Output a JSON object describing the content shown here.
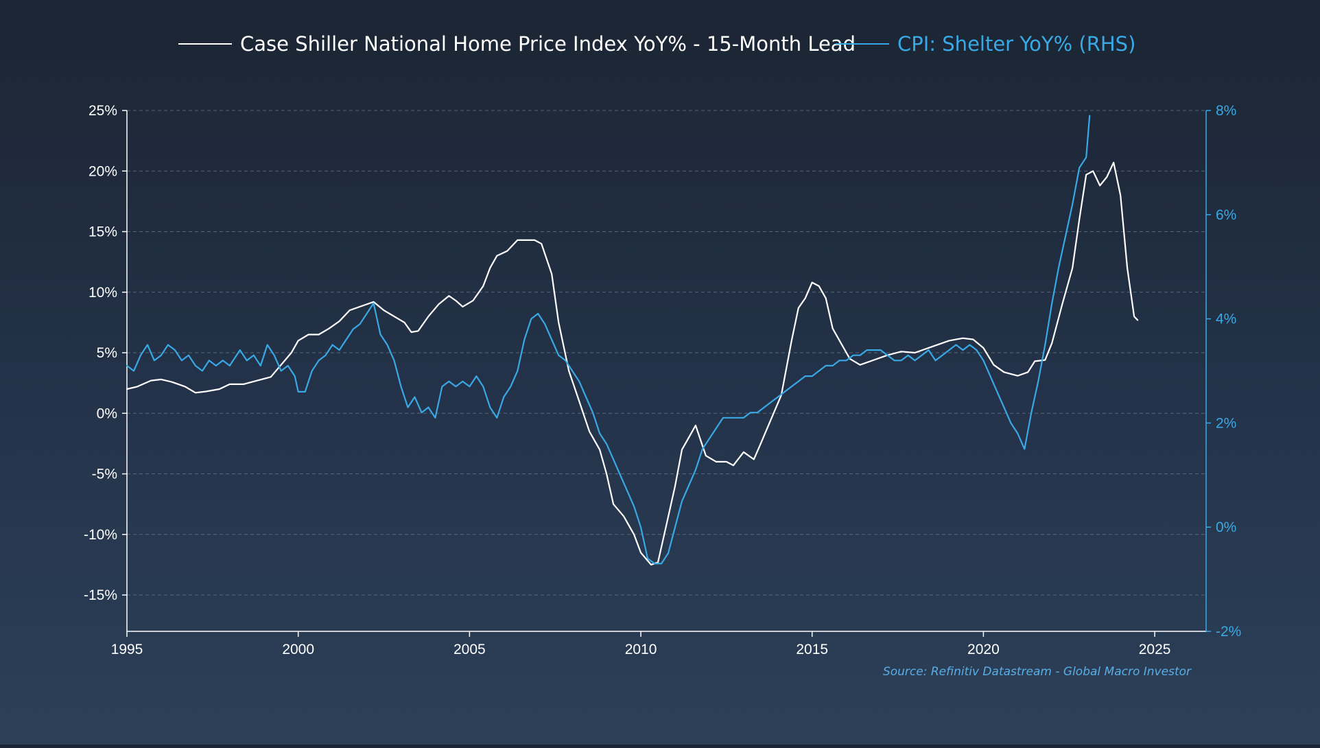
{
  "chart_data": {
    "type": "line",
    "colors": {
      "series_0": "#ffffff",
      "series_1": "#39a9e6",
      "grid": "#6b7a8c"
    },
    "legend_position": "top-center",
    "grid": true,
    "source": "Source: Refinitiv Datastream - Global Macro Investor",
    "x_axis": {
      "min": 1995,
      "max": 2026.5,
      "ticks": [
        1995,
        2000,
        2005,
        2010,
        2015,
        2020,
        2025
      ],
      "tick_labels": [
        "1995",
        "2000",
        "2005",
        "2010",
        "2015",
        "2020",
        "2025"
      ]
    },
    "y_left": {
      "min": -18,
      "max": 25,
      "ticks": [
        -15,
        -10,
        -5,
        0,
        5,
        10,
        15,
        20,
        25
      ],
      "tick_labels": [
        "-15%",
        "-10%",
        "-5%",
        "0%",
        "5%",
        "10%",
        "15%",
        "20%",
        "25%"
      ]
    },
    "y_right": {
      "min": -2,
      "max": 8,
      "ticks": [
        -2,
        0,
        2,
        4,
        6,
        8
      ],
      "tick_labels": [
        "-2%",
        "0%",
        "2%",
        "4%",
        "6%",
        "8%"
      ]
    },
    "series": [
      {
        "name": "Case Shiller National Home Price Index YoY% - 15-Month Lead",
        "axis": "left",
        "points": [
          [
            1995.0,
            2.0
          ],
          [
            1995.3,
            2.2
          ],
          [
            1995.7,
            2.7
          ],
          [
            1996.0,
            2.8
          ],
          [
            1996.3,
            2.6
          ],
          [
            1996.7,
            2.2
          ],
          [
            1997.0,
            1.7
          ],
          [
            1997.3,
            1.8
          ],
          [
            1997.7,
            2.0
          ],
          [
            1998.0,
            2.4
          ],
          [
            1998.4,
            2.4
          ],
          [
            1998.8,
            2.7
          ],
          [
            1999.2,
            3.0
          ],
          [
            1999.5,
            4.0
          ],
          [
            1999.8,
            5.0
          ],
          [
            2000.0,
            6.0
          ],
          [
            2000.3,
            6.5
          ],
          [
            2000.6,
            6.5
          ],
          [
            2000.9,
            7.0
          ],
          [
            2001.2,
            7.6
          ],
          [
            2001.5,
            8.5
          ],
          [
            2001.8,
            8.8
          ],
          [
            2002.2,
            9.2
          ],
          [
            2002.5,
            8.5
          ],
          [
            2002.8,
            8.0
          ],
          [
            2003.1,
            7.5
          ],
          [
            2003.3,
            6.7
          ],
          [
            2003.5,
            6.8
          ],
          [
            2003.8,
            8.0
          ],
          [
            2004.1,
            9.0
          ],
          [
            2004.4,
            9.7
          ],
          [
            2004.6,
            9.3
          ],
          [
            2004.8,
            8.8
          ],
          [
            2005.1,
            9.3
          ],
          [
            2005.4,
            10.5
          ],
          [
            2005.6,
            12.0
          ],
          [
            2005.8,
            13.0
          ],
          [
            2006.1,
            13.4
          ],
          [
            2006.4,
            14.3
          ],
          [
            2006.7,
            14.3
          ],
          [
            2006.9,
            14.3
          ],
          [
            2007.1,
            14.0
          ],
          [
            2007.4,
            11.5
          ],
          [
            2007.6,
            7.5
          ],
          [
            2007.9,
            3.5
          ],
          [
            2008.2,
            1.0
          ],
          [
            2008.5,
            -1.5
          ],
          [
            2008.8,
            -3.0
          ],
          [
            2009.0,
            -5.0
          ],
          [
            2009.2,
            -7.5
          ],
          [
            2009.5,
            -8.5
          ],
          [
            2009.8,
            -10.0
          ],
          [
            2010.0,
            -11.5
          ],
          [
            2010.3,
            -12.5
          ],
          [
            2010.5,
            -12.3
          ],
          [
            2010.7,
            -9.8
          ],
          [
            2011.0,
            -6.0
          ],
          [
            2011.2,
            -3.0
          ],
          [
            2011.4,
            -2.0
          ],
          [
            2011.6,
            -1.0
          ],
          [
            2011.9,
            -3.5
          ],
          [
            2012.2,
            -4.0
          ],
          [
            2012.5,
            -4.0
          ],
          [
            2012.7,
            -4.3
          ],
          [
            2013.0,
            -3.2
          ],
          [
            2013.3,
            -3.8
          ],
          [
            2013.5,
            -2.5
          ],
          [
            2013.8,
            -0.5
          ],
          [
            2014.1,
            1.5
          ],
          [
            2014.4,
            6.0
          ],
          [
            2014.6,
            8.7
          ],
          [
            2014.8,
            9.5
          ],
          [
            2015.0,
            10.8
          ],
          [
            2015.2,
            10.5
          ],
          [
            2015.4,
            9.5
          ],
          [
            2015.6,
            7.0
          ],
          [
            2015.8,
            6.0
          ],
          [
            2016.1,
            4.5
          ],
          [
            2016.4,
            4.0
          ],
          [
            2016.8,
            4.4
          ],
          [
            2017.2,
            4.8
          ],
          [
            2017.6,
            5.1
          ],
          [
            2018.0,
            5.0
          ],
          [
            2018.5,
            5.5
          ],
          [
            2019.0,
            6.0
          ],
          [
            2019.4,
            6.2
          ],
          [
            2019.7,
            6.1
          ],
          [
            2020.0,
            5.4
          ],
          [
            2020.3,
            4.0
          ],
          [
            2020.6,
            3.4
          ],
          [
            2021.0,
            3.1
          ],
          [
            2021.3,
            3.4
          ],
          [
            2021.5,
            4.3
          ],
          [
            2021.8,
            4.4
          ],
          [
            2022.0,
            5.8
          ],
          [
            2022.3,
            9.0
          ],
          [
            2022.6,
            12.0
          ],
          [
            2022.8,
            16.0
          ],
          [
            2023.0,
            19.7
          ],
          [
            2023.2,
            20.0
          ],
          [
            2023.4,
            18.8
          ],
          [
            2023.6,
            19.5
          ],
          [
            2023.8,
            20.7
          ],
          [
            2024.0,
            18.0
          ],
          [
            2024.2,
            12.0
          ],
          [
            2024.4,
            8.0
          ],
          [
            2024.5,
            7.7
          ]
        ]
      },
      {
        "name": "CPI: Shelter YoY% (RHS)",
        "axis": "right",
        "points": [
          [
            1995.0,
            3.1
          ],
          [
            1995.2,
            3.0
          ],
          [
            1995.4,
            3.3
          ],
          [
            1995.6,
            3.5
          ],
          [
            1995.8,
            3.2
          ],
          [
            1996.0,
            3.3
          ],
          [
            1996.2,
            3.5
          ],
          [
            1996.4,
            3.4
          ],
          [
            1996.6,
            3.2
          ],
          [
            1996.8,
            3.3
          ],
          [
            1997.0,
            3.1
          ],
          [
            1997.2,
            3.0
          ],
          [
            1997.4,
            3.2
          ],
          [
            1997.6,
            3.1
          ],
          [
            1997.8,
            3.2
          ],
          [
            1998.0,
            3.1
          ],
          [
            1998.3,
            3.4
          ],
          [
            1998.5,
            3.2
          ],
          [
            1998.7,
            3.3
          ],
          [
            1998.9,
            3.1
          ],
          [
            1999.1,
            3.5
          ],
          [
            1999.3,
            3.3
          ],
          [
            1999.5,
            3.0
          ],
          [
            1999.7,
            3.1
          ],
          [
            1999.9,
            2.9
          ],
          [
            2000.0,
            2.6
          ],
          [
            2000.2,
            2.6
          ],
          [
            2000.4,
            3.0
          ],
          [
            2000.6,
            3.2
          ],
          [
            2000.8,
            3.3
          ],
          [
            2001.0,
            3.5
          ],
          [
            2001.2,
            3.4
          ],
          [
            2001.4,
            3.6
          ],
          [
            2001.6,
            3.8
          ],
          [
            2001.8,
            3.9
          ],
          [
            2002.0,
            4.1
          ],
          [
            2002.2,
            4.3
          ],
          [
            2002.4,
            3.7
          ],
          [
            2002.6,
            3.5
          ],
          [
            2002.8,
            3.2
          ],
          [
            2003.0,
            2.7
          ],
          [
            2003.2,
            2.3
          ],
          [
            2003.4,
            2.5
          ],
          [
            2003.6,
            2.2
          ],
          [
            2003.8,
            2.3
          ],
          [
            2004.0,
            2.1
          ],
          [
            2004.2,
            2.7
          ],
          [
            2004.4,
            2.8
          ],
          [
            2004.6,
            2.7
          ],
          [
            2004.8,
            2.8
          ],
          [
            2005.0,
            2.7
          ],
          [
            2005.2,
            2.9
          ],
          [
            2005.4,
            2.7
          ],
          [
            2005.6,
            2.3
          ],
          [
            2005.8,
            2.1
          ],
          [
            2006.0,
            2.5
          ],
          [
            2006.2,
            2.7
          ],
          [
            2006.4,
            3.0
          ],
          [
            2006.6,
            3.6
          ],
          [
            2006.8,
            4.0
          ],
          [
            2007.0,
            4.1
          ],
          [
            2007.2,
            3.9
          ],
          [
            2007.4,
            3.6
          ],
          [
            2007.6,
            3.3
          ],
          [
            2007.8,
            3.2
          ],
          [
            2008.0,
            3.0
          ],
          [
            2008.2,
            2.8
          ],
          [
            2008.4,
            2.5
          ],
          [
            2008.6,
            2.2
          ],
          [
            2008.8,
            1.8
          ],
          [
            2009.0,
            1.6
          ],
          [
            2009.2,
            1.3
          ],
          [
            2009.4,
            1.0
          ],
          [
            2009.6,
            0.7
          ],
          [
            2009.8,
            0.4
          ],
          [
            2010.0,
            0.0
          ],
          [
            2010.2,
            -0.6
          ],
          [
            2010.4,
            -0.7
          ],
          [
            2010.6,
            -0.7
          ],
          [
            2010.8,
            -0.5
          ],
          [
            2011.0,
            0.0
          ],
          [
            2011.2,
            0.5
          ],
          [
            2011.4,
            0.8
          ],
          [
            2011.6,
            1.1
          ],
          [
            2011.8,
            1.5
          ],
          [
            2012.0,
            1.7
          ],
          [
            2012.2,
            1.9
          ],
          [
            2012.4,
            2.1
          ],
          [
            2012.6,
            2.1
          ],
          [
            2012.8,
            2.1
          ],
          [
            2013.0,
            2.1
          ],
          [
            2013.2,
            2.2
          ],
          [
            2013.4,
            2.2
          ],
          [
            2013.6,
            2.3
          ],
          [
            2013.8,
            2.4
          ],
          [
            2014.0,
            2.5
          ],
          [
            2014.2,
            2.6
          ],
          [
            2014.4,
            2.7
          ],
          [
            2014.6,
            2.8
          ],
          [
            2014.8,
            2.9
          ],
          [
            2015.0,
            2.9
          ],
          [
            2015.2,
            3.0
          ],
          [
            2015.4,
            3.1
          ],
          [
            2015.6,
            3.1
          ],
          [
            2015.8,
            3.2
          ],
          [
            2016.0,
            3.2
          ],
          [
            2016.2,
            3.3
          ],
          [
            2016.4,
            3.3
          ],
          [
            2016.6,
            3.4
          ],
          [
            2016.8,
            3.4
          ],
          [
            2017.0,
            3.4
          ],
          [
            2017.2,
            3.3
          ],
          [
            2017.4,
            3.2
          ],
          [
            2017.6,
            3.2
          ],
          [
            2017.8,
            3.3
          ],
          [
            2018.0,
            3.2
          ],
          [
            2018.2,
            3.3
          ],
          [
            2018.4,
            3.4
          ],
          [
            2018.6,
            3.2
          ],
          [
            2018.8,
            3.3
          ],
          [
            2019.0,
            3.4
          ],
          [
            2019.2,
            3.5
          ],
          [
            2019.4,
            3.4
          ],
          [
            2019.6,
            3.5
          ],
          [
            2019.8,
            3.4
          ],
          [
            2020.0,
            3.2
          ],
          [
            2020.2,
            2.9
          ],
          [
            2020.4,
            2.6
          ],
          [
            2020.6,
            2.3
          ],
          [
            2020.8,
            2.0
          ],
          [
            2021.0,
            1.8
          ],
          [
            2021.2,
            1.5
          ],
          [
            2021.4,
            2.2
          ],
          [
            2021.6,
            2.8
          ],
          [
            2021.8,
            3.5
          ],
          [
            2022.0,
            4.3
          ],
          [
            2022.2,
            5.0
          ],
          [
            2022.4,
            5.6
          ],
          [
            2022.6,
            6.2
          ],
          [
            2022.8,
            6.9
          ],
          [
            2023.0,
            7.1
          ],
          [
            2023.1,
            7.9
          ]
        ]
      }
    ]
  }
}
